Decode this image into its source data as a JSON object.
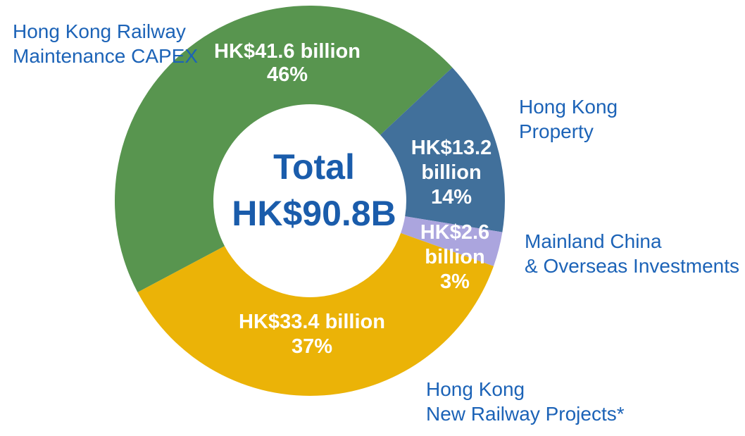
{
  "chart_data": {
    "type": "pie",
    "subtype": "donut",
    "title": "",
    "legend": "none",
    "total_label_lines": [
      "Total",
      "HK$90.8B"
    ],
    "total_value_billion_hkd": 90.8,
    "currency": "HKD",
    "start_angle_deg": -118,
    "direction": "clockwise",
    "text_colors": {
      "slice_label": "#FFFFFF",
      "callout": "#1C63B7",
      "center": "#1A5CAB"
    },
    "segments": [
      {
        "key": "hk-railway-maintenance-capex",
        "label": "Hong Kong Railway Maintenance CAPEX",
        "value_billion": 41.6,
        "percent": 46,
        "color": "#58954F",
        "slice_lines": [
          "HK$41.6 billion",
          "46%"
        ],
        "callout_lines": [
          "Hong Kong Railway",
          "Maintenance CAPEX"
        ]
      },
      {
        "key": "hk-property",
        "label": "Hong Kong Property",
        "value_billion": 13.2,
        "percent": 14,
        "color": "#41709B",
        "slice_lines": [
          "HK$13.2",
          "billion",
          "14%"
        ],
        "callout_lines": [
          "Hong Kong",
          "Property"
        ]
      },
      {
        "key": "mainland-china-overseas-investments",
        "label": "Mainland China & Overseas Investments",
        "value_billion": 2.6,
        "percent": 3,
        "color": "#ABA5DE",
        "slice_lines": [
          "HK$2.6",
          "billion",
          "3%"
        ],
        "callout_lines": [
          "Mainland China",
          "& Overseas Investments"
        ]
      },
      {
        "key": "hk-new-railway-projects",
        "label": "Hong Kong New Railway Projects*",
        "value_billion": 33.4,
        "percent": 37,
        "color": "#EBB307",
        "slice_lines": [
          "HK$33.4 billion",
          "37%"
        ],
        "callout_lines": [
          "Hong Kong",
          "New Railway Projects*"
        ]
      }
    ]
  }
}
